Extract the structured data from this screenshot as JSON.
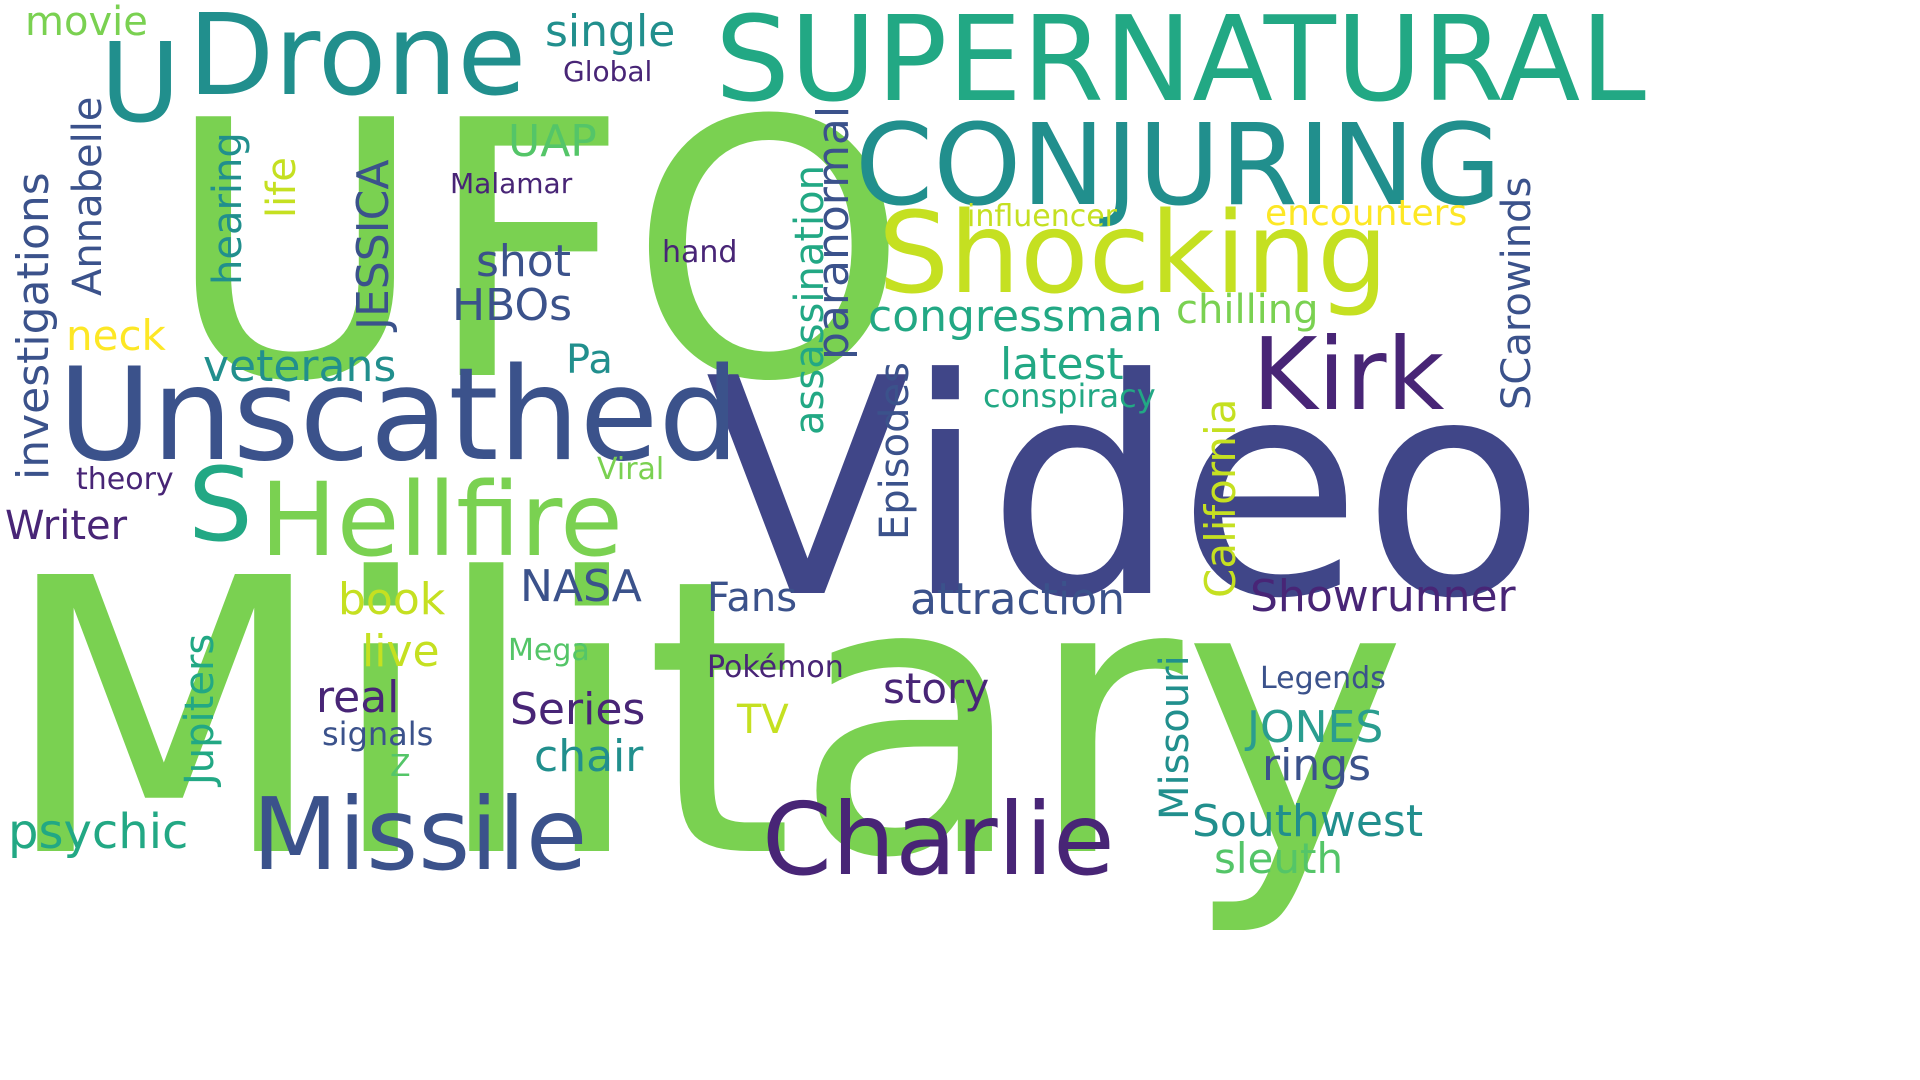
{
  "palette": {
    "green": "#7ad151",
    "lime": "#c5e021",
    "yellow": "#fde725",
    "teal": "#22a884",
    "teal_mid": "#2a9d8f",
    "cyan": "#218f8d",
    "blue": "#3b528b",
    "indigo": "#404688",
    "purple": "#482576",
    "violet": "#3e4a89",
    "seafoam": "#54c568"
  },
  "words": [
    {
      "text": "UFO",
      "color": "green",
      "weight": 100
    },
    {
      "text": "Video",
      "color": "indigo",
      "weight": 95
    },
    {
      "text": "Military",
      "color": "green",
      "weight": 100
    },
    {
      "text": "SUPERNATURAL",
      "color": "teal",
      "weight": 60
    },
    {
      "text": "CONJURING",
      "color": "cyan",
      "weight": 60
    },
    {
      "text": "Shocking",
      "color": "lime",
      "weight": 55
    },
    {
      "text": "Unscathed",
      "color": "blue",
      "weight": 60
    },
    {
      "text": "Drone",
      "color": "cyan",
      "weight": 50
    },
    {
      "text": "Hellfire",
      "color": "green",
      "weight": 50
    },
    {
      "text": "Kirk",
      "color": "purple",
      "weight": 50
    },
    {
      "text": "Missile",
      "color": "blue",
      "weight": 50
    },
    {
      "text": "Charlie",
      "color": "purple",
      "weight": 50
    },
    {
      "text": "U",
      "color": "cyan",
      "weight": 45
    },
    {
      "text": "S",
      "color": "teal",
      "weight": 45
    },
    {
      "text": "movie",
      "color": "green",
      "weight": 15
    },
    {
      "text": "single",
      "color": "cyan",
      "weight": 15
    },
    {
      "text": "Global",
      "color": "purple",
      "weight": 10
    },
    {
      "text": "investigations",
      "color": "blue",
      "weight": 15
    },
    {
      "text": "Annabelle",
      "color": "blue",
      "weight": 15
    },
    {
      "text": "hearing",
      "color": "cyan",
      "weight": 15
    },
    {
      "text": "life",
      "color": "lime",
      "weight": 15
    },
    {
      "text": "JESSICA",
      "color": "blue",
      "weight": 15
    },
    {
      "text": "UAP",
      "color": "seafoam",
      "weight": 15
    },
    {
      "text": "Malamar",
      "color": "purple",
      "weight": 10
    },
    {
      "text": "hand",
      "color": "purple",
      "weight": 10
    },
    {
      "text": "shot",
      "color": "blue",
      "weight": 15
    },
    {
      "text": "HBOs",
      "color": "blue",
      "weight": 15
    },
    {
      "text": "paranormal",
      "color": "blue",
      "weight": 15
    },
    {
      "text": "assassination",
      "color": "teal",
      "weight": 15
    },
    {
      "text": "influencer",
      "color": "lime",
      "weight": 10
    },
    {
      "text": "encounters",
      "color": "yellow",
      "weight": 12
    },
    {
      "text": "SCarowinds",
      "color": "blue",
      "weight": 15
    },
    {
      "text": "congressman",
      "color": "teal",
      "weight": 15
    },
    {
      "text": "chilling",
      "color": "green",
      "weight": 15
    },
    {
      "text": "neck",
      "color": "yellow",
      "weight": 15
    },
    {
      "text": "veterans",
      "color": "cyan",
      "weight": 15
    },
    {
      "text": "Pa",
      "color": "cyan",
      "weight": 12
    },
    {
      "text": "latest",
      "color": "teal",
      "weight": 15
    },
    {
      "text": "conspiracy",
      "color": "teal",
      "weight": 12
    },
    {
      "text": "California",
      "color": "lime",
      "weight": 15
    },
    {
      "text": "theory",
      "color": "purple",
      "weight": 10
    },
    {
      "text": "Viral",
      "color": "green",
      "weight": 10
    },
    {
      "text": "Episodes",
      "color": "blue",
      "weight": 15
    },
    {
      "text": "Writer",
      "color": "purple",
      "weight": 15
    },
    {
      "text": "book",
      "color": "lime",
      "weight": 15
    },
    {
      "text": "NASA",
      "color": "blue",
      "weight": 15
    },
    {
      "text": "Fans",
      "color": "blue",
      "weight": 12
    },
    {
      "text": "attraction",
      "color": "blue",
      "weight": 15
    },
    {
      "text": "Showrunner",
      "color": "purple",
      "weight": 15
    },
    {
      "text": "Jupiters",
      "color": "teal",
      "weight": 15
    },
    {
      "text": "live",
      "color": "lime",
      "weight": 15
    },
    {
      "text": "Mega",
      "color": "seafoam",
      "weight": 10
    },
    {
      "text": "Pokémon",
      "color": "purple",
      "weight": 10
    },
    {
      "text": "Missouri",
      "color": "cyan",
      "weight": 15
    },
    {
      "text": "Legends",
      "color": "blue",
      "weight": 10
    },
    {
      "text": "real",
      "color": "purple",
      "weight": 15
    },
    {
      "text": "story",
      "color": "purple",
      "weight": 15
    },
    {
      "text": "Series",
      "color": "purple",
      "weight": 15
    },
    {
      "text": "TV",
      "color": "lime",
      "weight": 15
    },
    {
      "text": "JONES",
      "color": "teal_mid",
      "weight": 15
    },
    {
      "text": "signals",
      "color": "blue",
      "weight": 10
    },
    {
      "text": "chair",
      "color": "cyan",
      "weight": 15
    },
    {
      "text": "rings",
      "color": "blue",
      "weight": 15
    },
    {
      "text": "Z",
      "color": "seafoam",
      "weight": 10
    },
    {
      "text": "psychic",
      "color": "teal",
      "weight": 18
    },
    {
      "text": "Southwest",
      "color": "cyan",
      "weight": 15
    },
    {
      "text": "sleuth",
      "color": "seafoam",
      "weight": 15
    }
  ]
}
